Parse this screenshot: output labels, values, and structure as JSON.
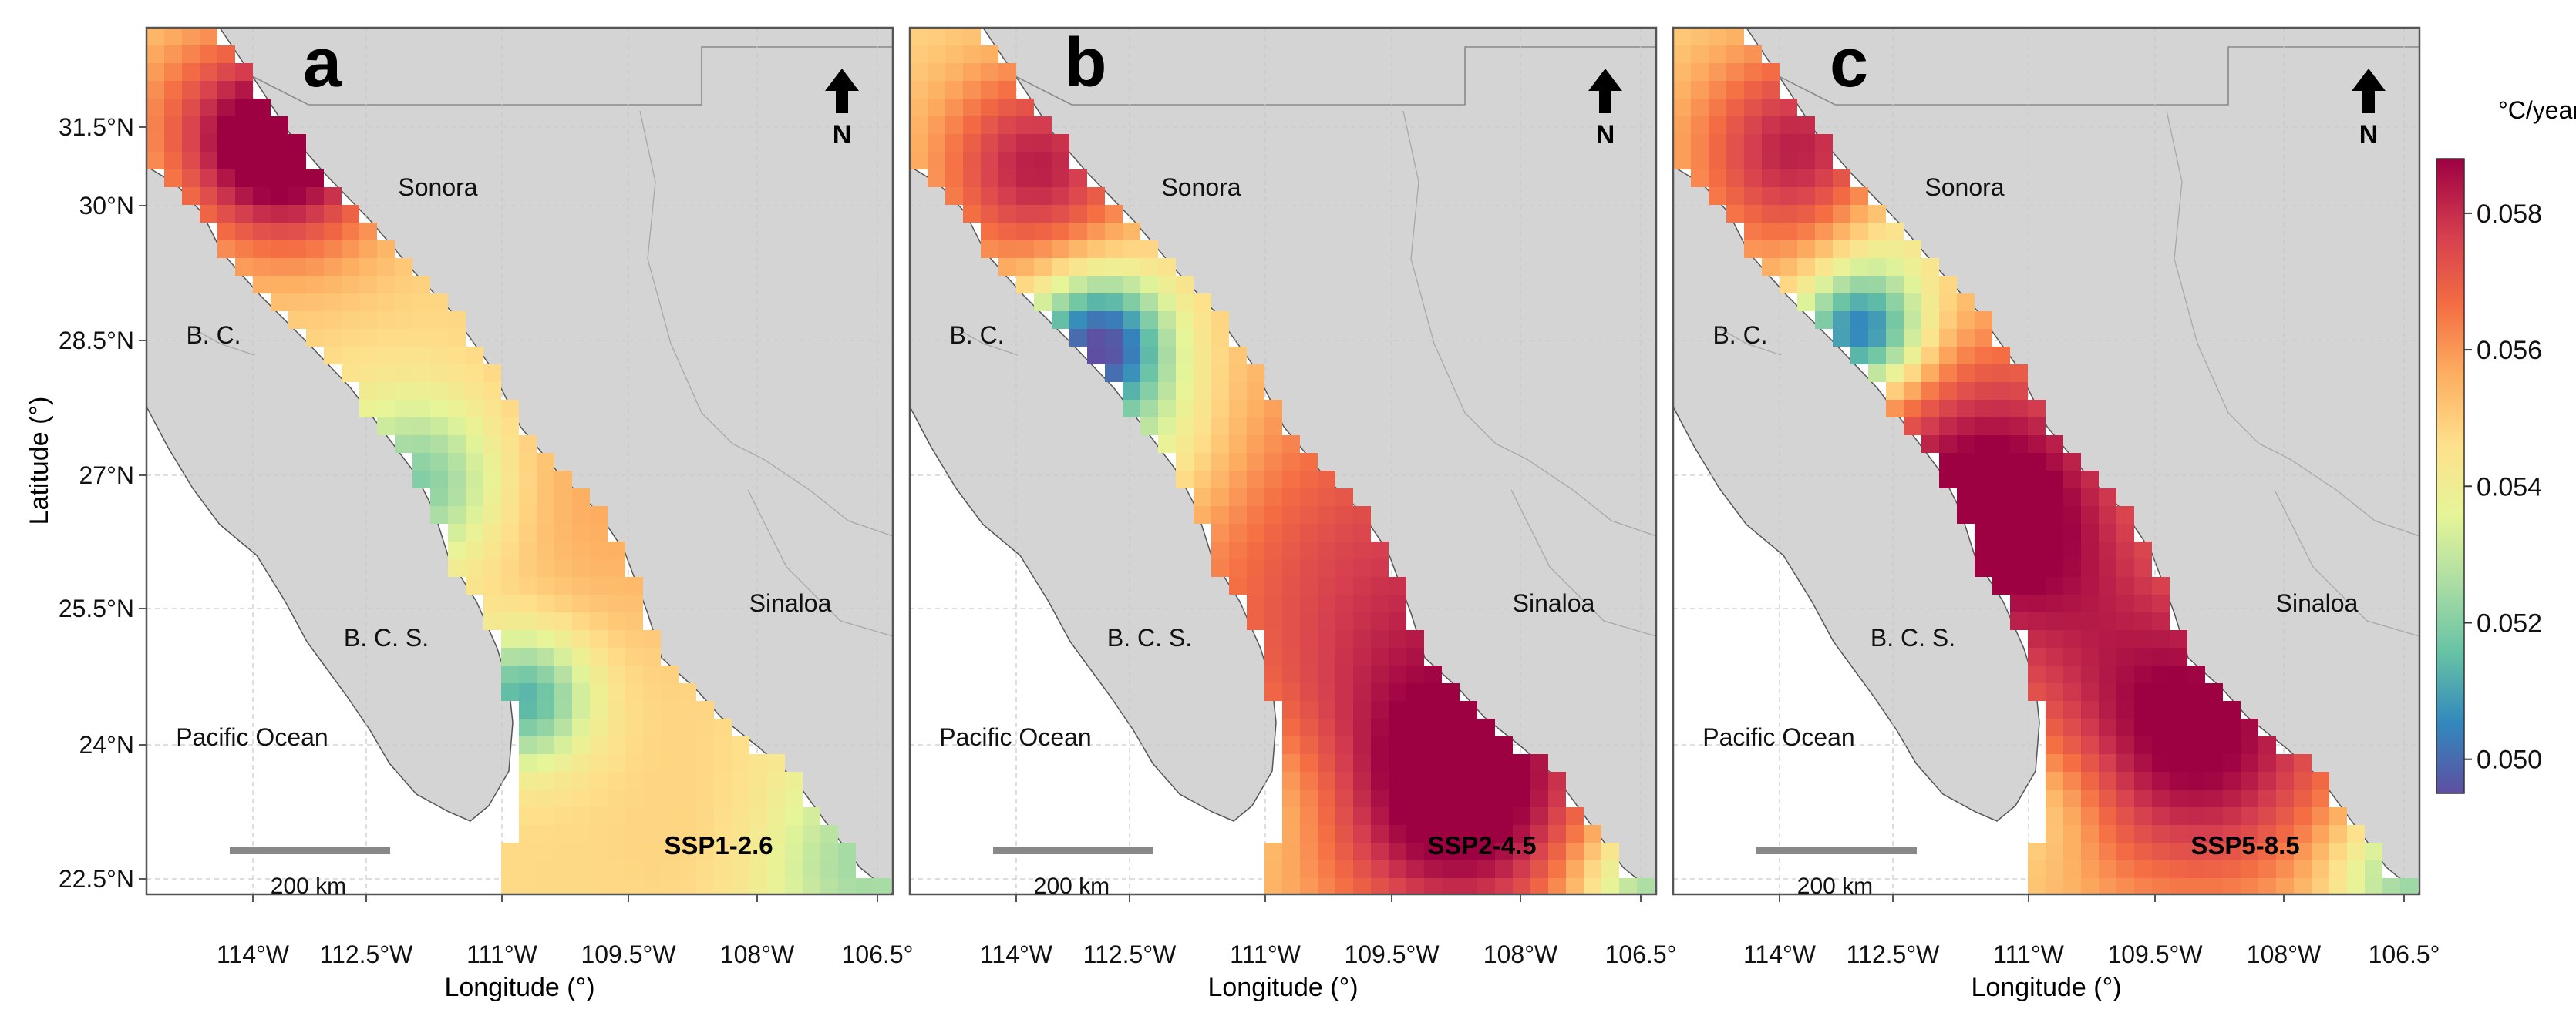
{
  "figure": {
    "x_axis_label": "Longitude (°)",
    "y_axis_label": "Latitude (°)",
    "x_tick_labels": [
      "114°W",
      "112.5°W",
      "111°W",
      "109.5°W",
      "108°W",
      "106.5°"
    ],
    "y_tick_labels": [
      "31.5°N",
      "30°N",
      "28.5°N",
      "27°N",
      "25.5°N",
      "24°N",
      "22.5°N"
    ],
    "place_labels": {
      "sonora": "Sonora",
      "sinaloa": "Sinaloa",
      "bc": "B. C.",
      "bcs": "B. C. S.",
      "pacific": "Pacific Ocean"
    },
    "scale_bar_label": "200 km",
    "north_arrow_label": "N",
    "colorbar": {
      "title": "°C/year",
      "tick_labels": [
        "0.058",
        "0.056",
        "0.054",
        "0.052",
        "0.050"
      ],
      "range": [
        0.0495,
        0.0588
      ]
    }
  },
  "panels": [
    {
      "letter": "a",
      "scenario": "SSP1-2.6"
    },
    {
      "letter": "b",
      "scenario": "SSP2-4.5"
    },
    {
      "letter": "c",
      "scenario": "SSP5-8.5"
    }
  ],
  "colors": {
    "land": "#d4d4d4",
    "ocean": "#ffffff",
    "frame": "#555555",
    "scale_bar": "#888888",
    "colormap": [
      "#5e4fa2",
      "#3288bd",
      "#66c2a5",
      "#abdda4",
      "#e6f598",
      "#fee08b",
      "#fdae61",
      "#f46d43",
      "#d53e4f",
      "#9e0142"
    ]
  }
}
